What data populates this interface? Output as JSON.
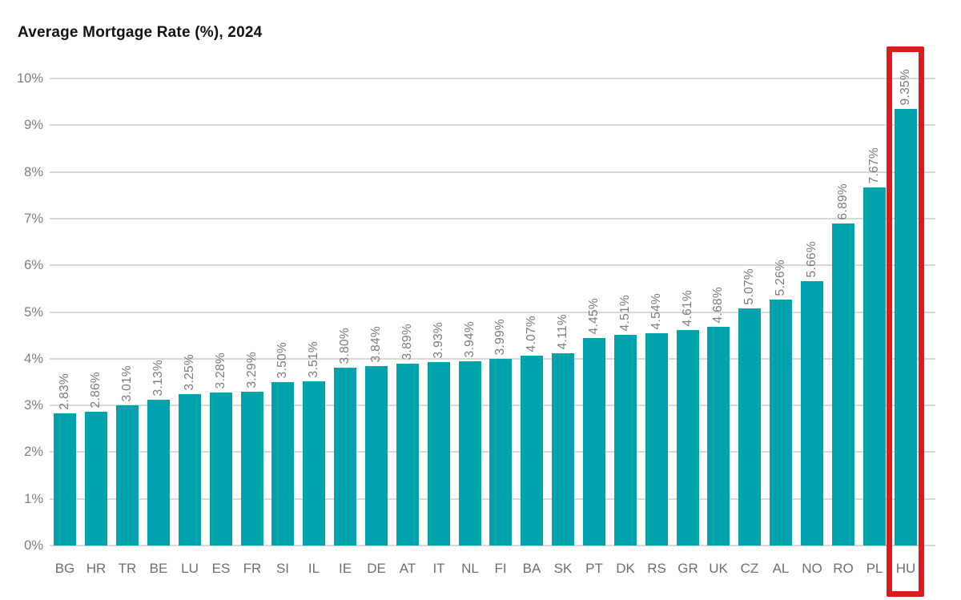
{
  "title": "Average Mortgage Rate (%), 2024",
  "chart_data": {
    "type": "bar",
    "title": "Average Mortgage Rate (%), 2024",
    "categories": [
      "BG",
      "HR",
      "TR",
      "BE",
      "LU",
      "ES",
      "FR",
      "SI",
      "IL",
      "IE",
      "DE",
      "AT",
      "IT",
      "NL",
      "FI",
      "BA",
      "SK",
      "PT",
      "DK",
      "RS",
      "GR",
      "UK",
      "CZ",
      "AL",
      "NO",
      "RO",
      "PL",
      "HU"
    ],
    "values": [
      2.83,
      2.86,
      3.01,
      3.13,
      3.25,
      3.28,
      3.29,
      3.5,
      3.51,
      3.8,
      3.84,
      3.89,
      3.93,
      3.94,
      3.99,
      4.07,
      4.11,
      4.45,
      4.51,
      4.54,
      4.61,
      4.68,
      5.07,
      5.26,
      5.66,
      6.89,
      7.67,
      9.35
    ],
    "value_labels": [
      "2.83%",
      "2.86%",
      "3.01%",
      "3.13%",
      "3.25%",
      "3.28%",
      "3.29%",
      "3.50%",
      "3.51%",
      "3.80%",
      "3.84%",
      "3.89%",
      "3.93%",
      "3.94%",
      "3.99%",
      "4.07%",
      "4.11%",
      "4.45%",
      "4.51%",
      "4.54%",
      "4.61%",
      "4.68%",
      "5.07%",
      "5.26%",
      "5.66%",
      "6.89%",
      "7.67%",
      "9.35%"
    ],
    "xlabel": "",
    "ylabel": "",
    "ylim": [
      0,
      10
    ],
    "ytick_labels": [
      "0%",
      "1%",
      "2%",
      "3%",
      "4%",
      "5%",
      "6%",
      "7%",
      "8%",
      "9%",
      "10%"
    ],
    "grid": true,
    "legend_position": "none",
    "bar_color": "#00A3AC",
    "gridline_color": "#D8D8D8",
    "axis_tick_color": "#7D7D85",
    "value_label_color": "#7B7B84",
    "category_label_color": "#6E6E76",
    "highlight": {
      "category": "HU",
      "value_label": "9.35%",
      "border_color": "#E0191E"
    }
  }
}
